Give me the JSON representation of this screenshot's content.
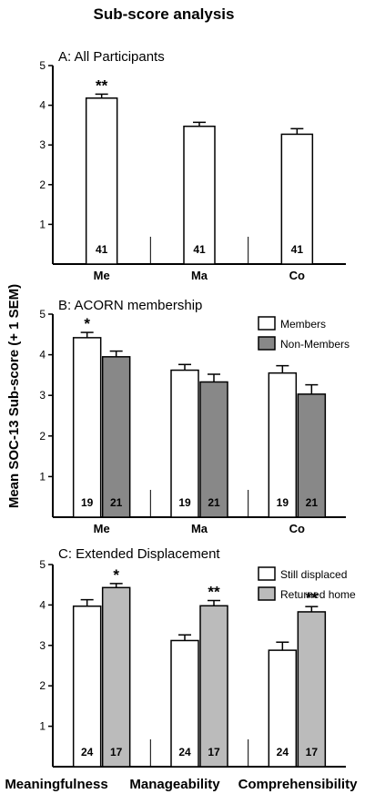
{
  "title": "Sub-score analysis",
  "ylabel": "Mean SOC-13 Sub-score (+ 1 SEM)",
  "bottom_categories": [
    "Meaningfulness",
    "Manageability",
    "Comprehensibility"
  ],
  "chart_data": [
    {
      "type": "bar",
      "title": "A: All Participants",
      "categories": [
        "Me",
        "Ma",
        "Co"
      ],
      "ylim": [
        0,
        5
      ],
      "yticks": [
        1,
        2,
        3,
        4,
        5
      ],
      "series": [
        {
          "values": [
            4.18,
            3.47,
            3.27
          ],
          "sem": [
            0.1,
            0.1,
            0.14
          ],
          "n": [
            "41",
            "41",
            "41"
          ],
          "sig": [
            "**",
            "",
            ""
          ],
          "color": "#ffffff"
        }
      ]
    },
    {
      "type": "bar",
      "title": "B: ACORN membership",
      "categories": [
        "Me",
        "Ma",
        "Co"
      ],
      "ylim": [
        0,
        5
      ],
      "yticks": [
        1,
        2,
        3,
        4,
        5
      ],
      "legend": "top-right",
      "series": [
        {
          "name": "Members",
          "values": [
            4.42,
            3.62,
            3.55
          ],
          "sem": [
            0.13,
            0.14,
            0.18
          ],
          "n": [
            "19",
            "19",
            "19"
          ],
          "sig": [
            "*",
            "",
            ""
          ],
          "color": "#ffffff"
        },
        {
          "name": "Non-Members",
          "values": [
            3.95,
            3.33,
            3.03
          ],
          "sem": [
            0.14,
            0.19,
            0.23
          ],
          "n": [
            "21",
            "21",
            "21"
          ],
          "sig": [
            "",
            "",
            ""
          ],
          "color": "#888888"
        }
      ]
    },
    {
      "type": "bar",
      "title": "C: Extended Displacement",
      "categories": [
        "",
        "",
        ""
      ],
      "ylim": [
        0,
        5
      ],
      "yticks": [
        1,
        2,
        3,
        4,
        5
      ],
      "legend": "top-right",
      "series": [
        {
          "name": "Still displaced",
          "values": [
            3.97,
            3.12,
            2.88
          ],
          "sem": [
            0.16,
            0.14,
            0.2
          ],
          "n": [
            "24",
            "24",
            "24"
          ],
          "sig": [
            "",
            "",
            ""
          ],
          "color": "#ffffff"
        },
        {
          "name": "Returned home",
          "values": [
            4.43,
            3.98,
            3.83
          ],
          "sem": [
            0.1,
            0.13,
            0.13
          ],
          "n": [
            "17",
            "17",
            "17"
          ],
          "sig": [
            "*",
            "**",
            "**"
          ],
          "color": "#bbbbbb"
        }
      ]
    }
  ]
}
